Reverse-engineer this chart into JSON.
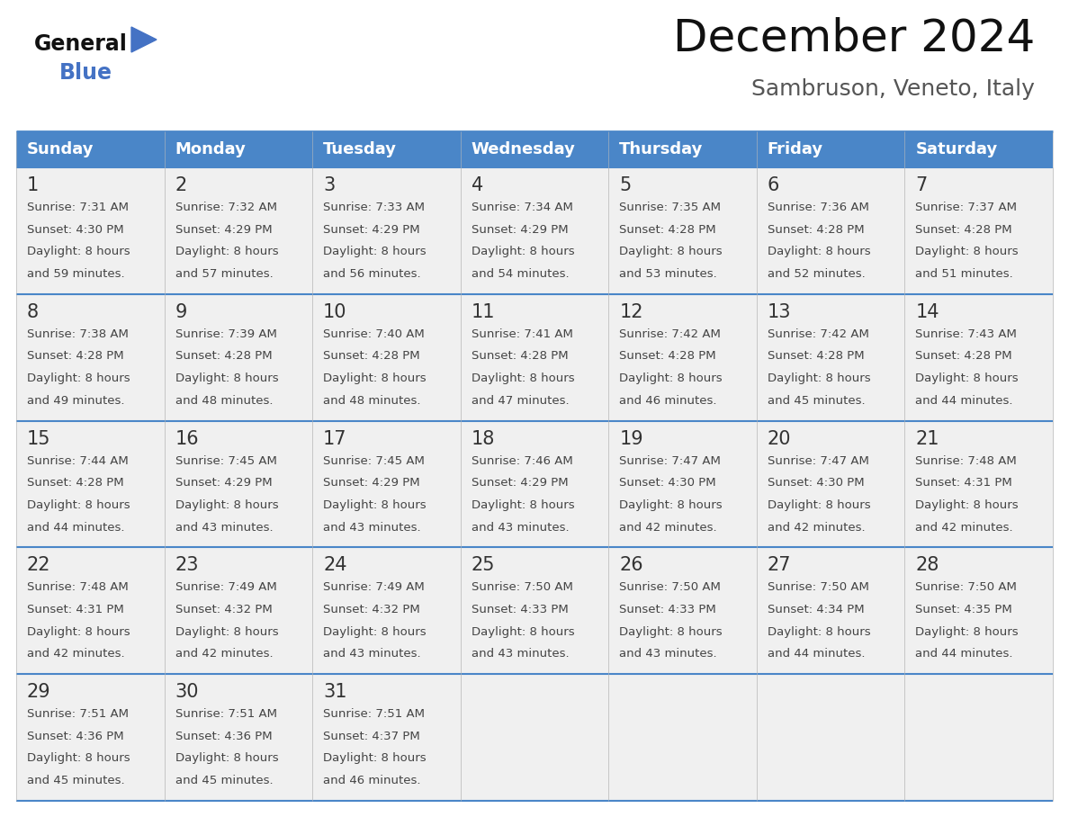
{
  "title": "December 2024",
  "subtitle": "Sambruson, Veneto, Italy",
  "header_color": "#4a86c8",
  "header_text_color": "#FFFFFF",
  "days_of_week": [
    "Sunday",
    "Monday",
    "Tuesday",
    "Wednesday",
    "Thursday",
    "Friday",
    "Saturday"
  ],
  "weeks": [
    [
      {
        "day": "1",
        "sunrise": "7:31 AM",
        "sunset": "4:30 PM",
        "daylight_line1": "Daylight: 8 hours",
        "daylight_line2": "and 59 minutes."
      },
      {
        "day": "2",
        "sunrise": "7:32 AM",
        "sunset": "4:29 PM",
        "daylight_line1": "Daylight: 8 hours",
        "daylight_line2": "and 57 minutes."
      },
      {
        "day": "3",
        "sunrise": "7:33 AM",
        "sunset": "4:29 PM",
        "daylight_line1": "Daylight: 8 hours",
        "daylight_line2": "and 56 minutes."
      },
      {
        "day": "4",
        "sunrise": "7:34 AM",
        "sunset": "4:29 PM",
        "daylight_line1": "Daylight: 8 hours",
        "daylight_line2": "and 54 minutes."
      },
      {
        "day": "5",
        "sunrise": "7:35 AM",
        "sunset": "4:28 PM",
        "daylight_line1": "Daylight: 8 hours",
        "daylight_line2": "and 53 minutes."
      },
      {
        "day": "6",
        "sunrise": "7:36 AM",
        "sunset": "4:28 PM",
        "daylight_line1": "Daylight: 8 hours",
        "daylight_line2": "and 52 minutes."
      },
      {
        "day": "7",
        "sunrise": "7:37 AM",
        "sunset": "4:28 PM",
        "daylight_line1": "Daylight: 8 hours",
        "daylight_line2": "and 51 minutes."
      }
    ],
    [
      {
        "day": "8",
        "sunrise": "7:38 AM",
        "sunset": "4:28 PM",
        "daylight_line1": "Daylight: 8 hours",
        "daylight_line2": "and 49 minutes."
      },
      {
        "day": "9",
        "sunrise": "7:39 AM",
        "sunset": "4:28 PM",
        "daylight_line1": "Daylight: 8 hours",
        "daylight_line2": "and 48 minutes."
      },
      {
        "day": "10",
        "sunrise": "7:40 AM",
        "sunset": "4:28 PM",
        "daylight_line1": "Daylight: 8 hours",
        "daylight_line2": "and 48 minutes."
      },
      {
        "day": "11",
        "sunrise": "7:41 AM",
        "sunset": "4:28 PM",
        "daylight_line1": "Daylight: 8 hours",
        "daylight_line2": "and 47 minutes."
      },
      {
        "day": "12",
        "sunrise": "7:42 AM",
        "sunset": "4:28 PM",
        "daylight_line1": "Daylight: 8 hours",
        "daylight_line2": "and 46 minutes."
      },
      {
        "day": "13",
        "sunrise": "7:42 AM",
        "sunset": "4:28 PM",
        "daylight_line1": "Daylight: 8 hours",
        "daylight_line2": "and 45 minutes."
      },
      {
        "day": "14",
        "sunrise": "7:43 AM",
        "sunset": "4:28 PM",
        "daylight_line1": "Daylight: 8 hours",
        "daylight_line2": "and 44 minutes."
      }
    ],
    [
      {
        "day": "15",
        "sunrise": "7:44 AM",
        "sunset": "4:28 PM",
        "daylight_line1": "Daylight: 8 hours",
        "daylight_line2": "and 44 minutes."
      },
      {
        "day": "16",
        "sunrise": "7:45 AM",
        "sunset": "4:29 PM",
        "daylight_line1": "Daylight: 8 hours",
        "daylight_line2": "and 43 minutes."
      },
      {
        "day": "17",
        "sunrise": "7:45 AM",
        "sunset": "4:29 PM",
        "daylight_line1": "Daylight: 8 hours",
        "daylight_line2": "and 43 minutes."
      },
      {
        "day": "18",
        "sunrise": "7:46 AM",
        "sunset": "4:29 PM",
        "daylight_line1": "Daylight: 8 hours",
        "daylight_line2": "and 43 minutes."
      },
      {
        "day": "19",
        "sunrise": "7:47 AM",
        "sunset": "4:30 PM",
        "daylight_line1": "Daylight: 8 hours",
        "daylight_line2": "and 42 minutes."
      },
      {
        "day": "20",
        "sunrise": "7:47 AM",
        "sunset": "4:30 PM",
        "daylight_line1": "Daylight: 8 hours",
        "daylight_line2": "and 42 minutes."
      },
      {
        "day": "21",
        "sunrise": "7:48 AM",
        "sunset": "4:31 PM",
        "daylight_line1": "Daylight: 8 hours",
        "daylight_line2": "and 42 minutes."
      }
    ],
    [
      {
        "day": "22",
        "sunrise": "7:48 AM",
        "sunset": "4:31 PM",
        "daylight_line1": "Daylight: 8 hours",
        "daylight_line2": "and 42 minutes."
      },
      {
        "day": "23",
        "sunrise": "7:49 AM",
        "sunset": "4:32 PM",
        "daylight_line1": "Daylight: 8 hours",
        "daylight_line2": "and 42 minutes."
      },
      {
        "day": "24",
        "sunrise": "7:49 AM",
        "sunset": "4:32 PM",
        "daylight_line1": "Daylight: 8 hours",
        "daylight_line2": "and 43 minutes."
      },
      {
        "day": "25",
        "sunrise": "7:50 AM",
        "sunset": "4:33 PM",
        "daylight_line1": "Daylight: 8 hours",
        "daylight_line2": "and 43 minutes."
      },
      {
        "day": "26",
        "sunrise": "7:50 AM",
        "sunset": "4:33 PM",
        "daylight_line1": "Daylight: 8 hours",
        "daylight_line2": "and 43 minutes."
      },
      {
        "day": "27",
        "sunrise": "7:50 AM",
        "sunset": "4:34 PM",
        "daylight_line1": "Daylight: 8 hours",
        "daylight_line2": "and 44 minutes."
      },
      {
        "day": "28",
        "sunrise": "7:50 AM",
        "sunset": "4:35 PM",
        "daylight_line1": "Daylight: 8 hours",
        "daylight_line2": "and 44 minutes."
      }
    ],
    [
      {
        "day": "29",
        "sunrise": "7:51 AM",
        "sunset": "4:36 PM",
        "daylight_line1": "Daylight: 8 hours",
        "daylight_line2": "and 45 minutes."
      },
      {
        "day": "30",
        "sunrise": "7:51 AM",
        "sunset": "4:36 PM",
        "daylight_line1": "Daylight: 8 hours",
        "daylight_line2": "and 45 minutes."
      },
      {
        "day": "31",
        "sunrise": "7:51 AM",
        "sunset": "4:37 PM",
        "daylight_line1": "Daylight: 8 hours",
        "daylight_line2": "and 46 minutes."
      },
      null,
      null,
      null,
      null
    ]
  ],
  "bg_color": "#FFFFFF",
  "cell_bg": "#F0F0F0",
  "border_color": "#4a86c8",
  "text_color": "#333333",
  "day_num_color": "#333333",
  "info_text_color": "#444444",
  "title_fontsize": 36,
  "subtitle_fontsize": 18,
  "header_fontsize": 13,
  "day_num_fontsize": 15,
  "info_fontsize": 9.5
}
